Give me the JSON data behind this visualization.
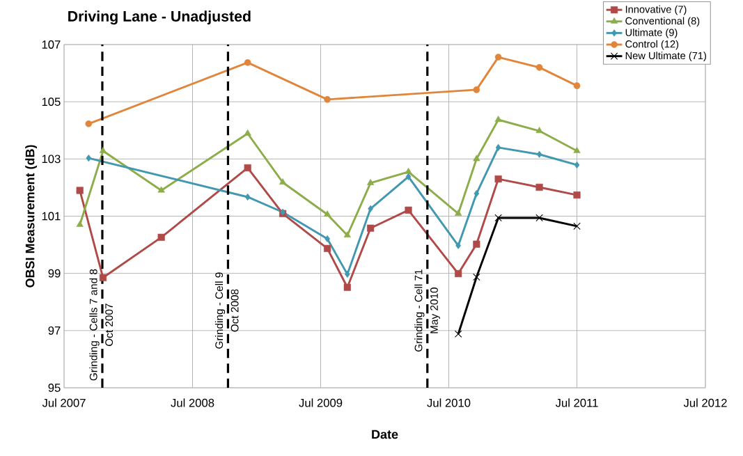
{
  "chart_data": {
    "type": "line",
    "title": "Driving Lane - Unadjusted",
    "xlabel": "Date",
    "ylabel": "OBSI Measurement (dB)",
    "xlim": [
      "2007-07-01",
      "2012-07-01"
    ],
    "ylim": [
      95,
      107
    ],
    "xticks": [
      {
        "value": "2007-07-01",
        "label": "Jul 2007"
      },
      {
        "value": "2008-07-01",
        "label": "Jul 2008"
      },
      {
        "value": "2009-07-01",
        "label": "Jul 2009"
      },
      {
        "value": "2010-07-01",
        "label": "Jul 2010"
      },
      {
        "value": "2011-07-01",
        "label": "Jul 2011"
      },
      {
        "value": "2012-07-01",
        "label": "Jul 2012"
      }
    ],
    "yticks": [
      95,
      97,
      99,
      101,
      103,
      105,
      107
    ],
    "grid": true,
    "legend": "top right",
    "line_style": "solid",
    "series": [
      {
        "name": "Innovative (7)",
        "color": "#b04a48",
        "marker": "square",
        "x": [
          "2007-08-15",
          "2007-10-20",
          "2008-04-03",
          "2008-12-05",
          "2009-03-15",
          "2009-07-20",
          "2009-09-15",
          "2009-11-20",
          "2010-03-08",
          "2010-07-28",
          "2010-09-18",
          "2010-11-19",
          "2011-03-16",
          "2011-07-01"
        ],
        "values": [
          101.9,
          98.85,
          100.26,
          102.69,
          101.09,
          99.87,
          98.51,
          100.58,
          101.21,
          98.99,
          100.02,
          102.3,
          102.01,
          101.74
        ]
      },
      {
        "name": "Conventional (8)",
        "color": "#8cad4a",
        "marker": "triangle",
        "x": [
          "2007-08-15",
          "2007-10-20",
          "2008-04-03",
          "2008-12-05",
          "2009-03-15",
          "2009-07-20",
          "2009-09-15",
          "2009-11-20",
          "2010-03-08",
          "2010-07-28",
          "2010-09-18",
          "2010-11-19",
          "2011-03-16",
          "2011-07-01"
        ],
        "values": [
          100.7,
          103.28,
          101.9,
          103.89,
          102.18,
          101.06,
          100.33,
          102.16,
          102.55,
          101.09,
          103.0,
          104.37,
          103.98,
          103.28
        ]
      },
      {
        "name": "Ultimate (9)",
        "color": "#4298b0",
        "marker": "diamond",
        "x": [
          "2007-09-09",
          "2008-12-05",
          "2009-03-15",
          "2009-07-20",
          "2009-09-15",
          "2009-11-20",
          "2010-03-08",
          "2010-07-28",
          "2010-09-18",
          "2010-11-19",
          "2011-03-16",
          "2011-07-01"
        ],
        "values": [
          103.03,
          101.67,
          101.14,
          100.21,
          98.97,
          101.26,
          102.38,
          99.97,
          101.79,
          103.4,
          103.16,
          102.79
        ]
      },
      {
        "name": "Control (12)",
        "color": "#e0853a",
        "marker": "circle",
        "x": [
          "2007-09-09",
          "2008-12-05",
          "2009-07-20",
          "2010-09-18",
          "2010-11-19",
          "2011-03-16",
          "2011-07-01"
        ],
        "values": [
          104.23,
          106.37,
          105.08,
          105.42,
          106.56,
          106.2,
          105.56
        ]
      },
      {
        "name": "New Ultimate (71)",
        "color": "#000000",
        "marker": "cross",
        "x": [
          "2010-07-28",
          "2010-09-18",
          "2010-11-19",
          "2011-03-16",
          "2011-07-01"
        ],
        "values": [
          96.88,
          98.87,
          100.94,
          100.94,
          100.65
        ]
      }
    ],
    "ref_lines": [
      {
        "axis": "x",
        "value": "2007-10-18",
        "label": "Grinding - Cells 7 and 8",
        "color": "#000000",
        "line_style": "dashed"
      },
      {
        "axis": "x",
        "value": "2008-10-10",
        "label": "Grinding - Cell 9",
        "color": "#000000",
        "line_style": "dashed"
      },
      {
        "axis": "x",
        "value": "2010-05-01",
        "label": "Grinding - Cell 71",
        "color": "#000000",
        "line_style": "dashed"
      }
    ],
    "annotations": [
      {
        "text": "Oct 2007",
        "x": "2007-10-18",
        "y": 97.2
      },
      {
        "text": "Oct 2008",
        "x": "2008-10-10",
        "y": 97.7
      },
      {
        "text": "May 2010",
        "x": "2010-05-01",
        "y": 97.7
      }
    ]
  }
}
